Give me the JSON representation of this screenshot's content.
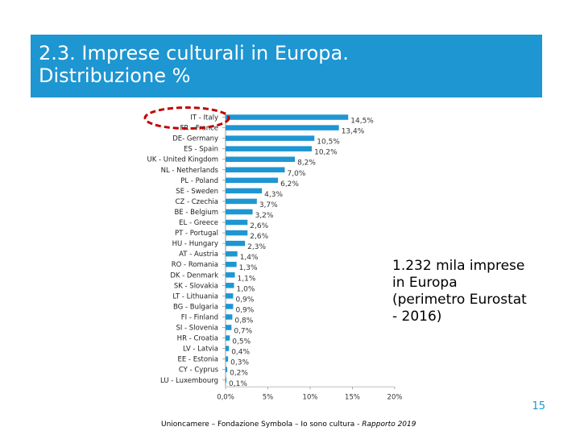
{
  "slide": {
    "title_line1": "2.3. Imprese culturali in Europa.",
    "title_line2": "Distribuzione %",
    "annotation_lines": [
      "1.232 mila imprese",
      "in Europa",
      "(perimetro Eurostat",
      "- 2016)"
    ],
    "page_number": "15",
    "footer_main": "Unioncamere – Fondazione Symbola – Io sono cultura - ",
    "footer_italic": "Rapporto 2019"
  },
  "colors": {
    "title_bg": "#1e96d2",
    "bar": "#1e96d2",
    "highlight_ellipse": "#c00000"
  },
  "chart_data": {
    "type": "bar",
    "orientation": "horizontal",
    "categories": [
      "IT - Italy",
      "FR - France",
      "DE- Germany",
      "ES - Spain",
      "UK - United Kingdom",
      "NL - Netherlands",
      "PL - Poland",
      "SE - Sweden",
      "CZ - Czechia",
      "BE - Belgium",
      "EL - Greece",
      "PT - Portugal",
      "HU - Hungary",
      "AT - Austria",
      "RO - Romania",
      "DK - Denmark",
      "SK - Slovakia",
      "LT - Lithuania",
      "BG - Bulgaria",
      "FI - Finland",
      "SI - Slovenia",
      "HR - Croatia",
      "LV - Latvia",
      "EE - Estonia",
      "CY - Cyprus",
      "LU - Luxembourg"
    ],
    "values": [
      14.5,
      13.4,
      10.5,
      10.2,
      8.2,
      7.0,
      6.2,
      4.3,
      3.7,
      3.2,
      2.6,
      2.6,
      2.3,
      1.4,
      1.3,
      1.1,
      1.0,
      0.9,
      0.9,
      0.8,
      0.7,
      0.5,
      0.4,
      0.3,
      0.2,
      0.1
    ],
    "value_labels": [
      "14,5%",
      "13,4%",
      "10,5%",
      "10,2%",
      "8,2%",
      "7,0%",
      "6,2%",
      "4,3%",
      "3,7%",
      "3,2%",
      "2,6%",
      "2,6%",
      "2,3%",
      "1,4%",
      "1,3%",
      "1,1%",
      "1,0%",
      "0,9%",
      "0,9%",
      "0,8%",
      "0,7%",
      "0,5%",
      "0,4%",
      "0,3%",
      "0,2%",
      "0,1%"
    ],
    "xlim": [
      0,
      20
    ],
    "x_ticks": [
      0,
      5,
      10,
      15,
      20
    ],
    "x_tick_labels": [
      "0,0%",
      "5%",
      "10%",
      "15%",
      "20%"
    ],
    "highlighted_category": "IT - Italy",
    "grid": false,
    "legend": "none"
  }
}
